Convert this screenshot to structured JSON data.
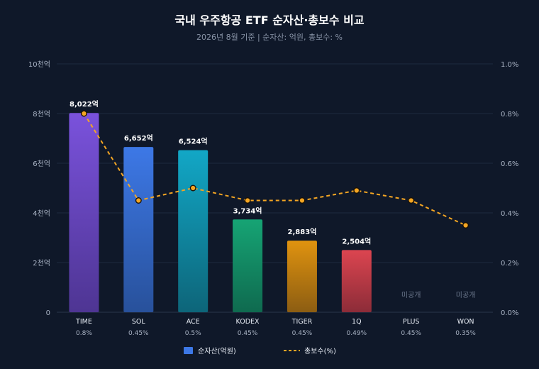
{
  "chart_data": {
    "type": "bar",
    "title": "국내 우주항공 ETF 순자산·총보수 비교",
    "subtitle": "2026년 8월 기준 | 순자산: 억원, 총보수: %",
    "categories": [
      "TIME",
      "SOL",
      "ACE",
      "KODEX",
      "TIGER",
      "1Q",
      "PLUS",
      "WON"
    ],
    "x_sublabels": [
      "0.8%",
      "0.45%",
      "0.5%",
      "0.45%",
      "0.45%",
      "0.49%",
      "0.45%",
      "0.35%"
    ],
    "series": [
      {
        "name": "순자산(억원)",
        "type": "bar",
        "axis": "left",
        "values": [
          8022,
          6652,
          6524,
          3734,
          2883,
          2504,
          null,
          null
        ],
        "data_labels": [
          "8,022억",
          "6,652억",
          "6,524억",
          "3,734억",
          "2,883억",
          "2,504억",
          "미공개",
          "미공개"
        ]
      },
      {
        "name": "총보수(%)",
        "type": "line",
        "axis": "right",
        "style": "dashed",
        "color": "#f5a623",
        "values": [
          0.8,
          0.45,
          0.5,
          0.45,
          0.45,
          0.49,
          0.45,
          0.35
        ]
      }
    ],
    "bar_colors": [
      [
        "#7a52dc",
        "#4e3593"
      ],
      [
        "#3d78e6",
        "#28519b"
      ],
      [
        "#12a7c6",
        "#0d6579"
      ],
      [
        "#16a474",
        "#0f6a4f"
      ],
      [
        "#e0930f",
        "#8c5d12"
      ],
      [
        "#dc4550",
        "#8c2c38"
      ]
    ],
    "y_left": {
      "ylim": [
        0,
        10000
      ],
      "ticks": [
        0,
        2000,
        4000,
        6000,
        8000,
        10000
      ],
      "tick_labels": [
        "0",
        "2천억",
        "4천억",
        "6천억",
        "8천억",
        "10천억"
      ]
    },
    "y_right": {
      "ylim": [
        0,
        1.0
      ],
      "ticks": [
        0,
        0.2,
        0.4,
        0.6,
        0.8,
        1.0
      ],
      "tick_labels": [
        "0.0%",
        "0.2%",
        "0.4%",
        "0.6%",
        "0.8%",
        "1.0%"
      ]
    },
    "grid": true,
    "legend_position": "bottom-center"
  },
  "colors": {
    "background": "#0f1829",
    "grid": "#1e2a3e",
    "line": "#f5a623",
    "legend_bar": "#3d78e6"
  }
}
